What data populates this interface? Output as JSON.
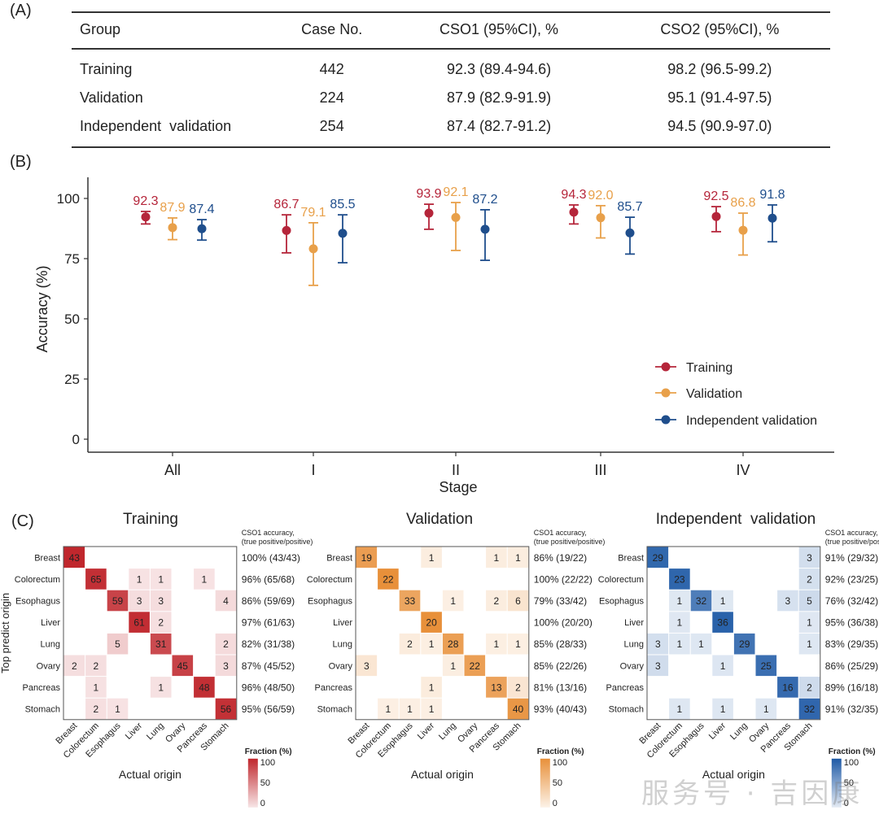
{
  "panelA": {
    "label": "(A)",
    "columns": [
      "Group",
      "Case No.",
      "CSO1 (95%CI), %",
      "CSO2 (95%CI), %"
    ],
    "rows": [
      [
        "Training",
        "442",
        "92.3 (89.4-94.6)",
        "98.2 (96.5-99.2)"
      ],
      [
        "Validation",
        "224",
        "87.9 (82.9-91.9)",
        "95.1 (91.4-97.5)"
      ],
      [
        "Independent  validation",
        "254",
        "87.4 (82.7-91.2)",
        "94.5 (90.9-97.0)"
      ]
    ]
  },
  "chart_data": [
    {
      "panel": "(B)",
      "type": "scatter",
      "subtype": "point-errorbar",
      "title": "",
      "xlabel": "Stage",
      "ylabel": "Accuracy (%)",
      "ylim": [
        0,
        105
      ],
      "yticks": [
        0,
        25,
        50,
        75,
        100
      ],
      "categories": [
        "All",
        "I",
        "II",
        "III",
        "IV"
      ],
      "legend_position": "bottom-right",
      "grid": false,
      "series": [
        {
          "name": "Training",
          "color": "#b5253a",
          "values": [
            92.3,
            86.7,
            93.9,
            94.3,
            92.5
          ],
          "lower": [
            89.4,
            77.4,
            87.2,
            89.4,
            86.2
          ],
          "upper": [
            94.6,
            93.2,
            97.6,
            97.3,
            96.6
          ],
          "labels": [
            "92.3",
            "86.7",
            "93.9",
            "94.3",
            "92.5"
          ]
        },
        {
          "name": "Validation",
          "color": "#e8a04a",
          "values": [
            87.9,
            79.1,
            92.1,
            92.0,
            86.8
          ],
          "lower": [
            82.9,
            63.9,
            78.4,
            83.6,
            76.5
          ],
          "upper": [
            91.9,
            89.9,
            98.3,
            97.0,
            93.9
          ],
          "labels": [
            "87.9",
            "79.1",
            "92.1",
            "92.0",
            "86.8"
          ]
        },
        {
          "name": "Independent validation",
          "color": "#1f4e8c",
          "values": [
            87.4,
            85.5,
            87.2,
            85.7,
            91.8
          ],
          "lower": [
            82.7,
            73.3,
            74.3,
            76.9,
            82.0
          ],
          "upper": [
            91.2,
            93.2,
            95.3,
            92.2,
            97.3
          ],
          "labels": [
            "87.4",
            "85.5",
            "87.2",
            "85.7",
            "91.8"
          ]
        }
      ]
    },
    {
      "panel": "(C)",
      "type": "heatmap",
      "title": "Training",
      "xlabel": "Actual origin",
      "ylabel": "Top predict origin",
      "categories": [
        "Breast",
        "Colorectum",
        "Esophagus",
        "Liver",
        "Lung",
        "Ovary",
        "Pancreas",
        "Stomach"
      ],
      "color": "#c0272d",
      "legend_title": "Fraction (%)",
      "legend_ticks": [
        "100",
        "50",
        "0"
      ],
      "side_header": [
        "CSO1 accuracy,",
        "(true positive/positive)"
      ],
      "matrix": [
        [
          43,
          0,
          0,
          0,
          0,
          0,
          0,
          0
        ],
        [
          0,
          65,
          0,
          1,
          1,
          0,
          1,
          0
        ],
        [
          0,
          0,
          59,
          3,
          3,
          0,
          0,
          4
        ],
        [
          0,
          0,
          0,
          61,
          2,
          0,
          0,
          0
        ],
        [
          0,
          0,
          5,
          0,
          31,
          0,
          0,
          2
        ],
        [
          2,
          2,
          0,
          0,
          0,
          45,
          0,
          3
        ],
        [
          0,
          1,
          0,
          0,
          1,
          0,
          48,
          0
        ],
        [
          0,
          2,
          1,
          0,
          0,
          0,
          0,
          56
        ]
      ],
      "row_accuracy": [
        "100% (43/43)",
        "96% (65/68)",
        "86% (59/69)",
        "97% (61/63)",
        "82% (31/38)",
        "87% (45/52)",
        "96% (48/50)",
        "95% (56/59)"
      ]
    },
    {
      "panel": "(C)",
      "type": "heatmap",
      "title": "Validation",
      "xlabel": "Actual origin",
      "ylabel": "",
      "categories": [
        "Breast",
        "Colorectum",
        "Esophagus",
        "Liver",
        "Lung",
        "Ovary",
        "Pancreas",
        "Stomach"
      ],
      "color": "#e8903a",
      "legend_title": "Fraction (%)",
      "legend_ticks": [
        "100",
        "50",
        "0"
      ],
      "side_header": [
        "CSO1 accuracy,",
        "(true positive/positive)"
      ],
      "matrix": [
        [
          19,
          0,
          0,
          1,
          0,
          0,
          1,
          1
        ],
        [
          0,
          22,
          0,
          0,
          0,
          0,
          0,
          0
        ],
        [
          0,
          0,
          33,
          0,
          1,
          0,
          2,
          6
        ],
        [
          0,
          0,
          0,
          20,
          0,
          0,
          0,
          0
        ],
        [
          0,
          0,
          2,
          1,
          28,
          0,
          1,
          1
        ],
        [
          3,
          0,
          0,
          0,
          1,
          22,
          0,
          0
        ],
        [
          0,
          0,
          0,
          1,
          0,
          0,
          13,
          2
        ],
        [
          0,
          1,
          1,
          1,
          0,
          0,
          0,
          40
        ]
      ],
      "row_accuracy": [
        "86% (19/22)",
        "100% (22/22)",
        "79% (33/42)",
        "100% (20/20)",
        "85% (28/33)",
        "85% (22/26)",
        "81% (13/16)",
        "93% (40/43)"
      ]
    },
    {
      "panel": "(C)",
      "type": "heatmap",
      "title": "Independent  validation",
      "xlabel": "Actual origin",
      "ylabel": "",
      "categories": [
        "Breast",
        "Colorectum",
        "Esophagus",
        "Liver",
        "Lung",
        "Ovary",
        "Pancreas",
        "Stomach"
      ],
      "color": "#1f5aa6",
      "legend_title": "Fraction (%)",
      "legend_ticks": [
        "100",
        "50",
        "0"
      ],
      "side_header": [
        "CSO1 accuracy,",
        "(true positive/positive)"
      ],
      "matrix": [
        [
          29,
          0,
          0,
          0,
          0,
          0,
          0,
          3
        ],
        [
          0,
          23,
          0,
          0,
          0,
          0,
          0,
          2
        ],
        [
          0,
          1,
          32,
          1,
          0,
          0,
          3,
          5
        ],
        [
          0,
          1,
          0,
          36,
          0,
          0,
          0,
          1
        ],
        [
          3,
          1,
          1,
          0,
          29,
          0,
          0,
          1
        ],
        [
          3,
          0,
          0,
          1,
          0,
          25,
          0,
          0
        ],
        [
          0,
          0,
          0,
          0,
          0,
          0,
          16,
          2
        ],
        [
          0,
          1,
          0,
          1,
          0,
          1,
          0,
          32
        ]
      ],
      "row_accuracy": [
        "91% (29/32)",
        "92% (23/25)",
        "76% (32/42)",
        "95% (36/38)",
        "83% (29/35)",
        "86% (25/29)",
        "89% (16/18)",
        "91% (32/35)"
      ]
    }
  ],
  "panelB": {
    "label": "(B)"
  },
  "panelC": {
    "label": "(C)"
  },
  "watermark": "服务号 · 吉因康"
}
